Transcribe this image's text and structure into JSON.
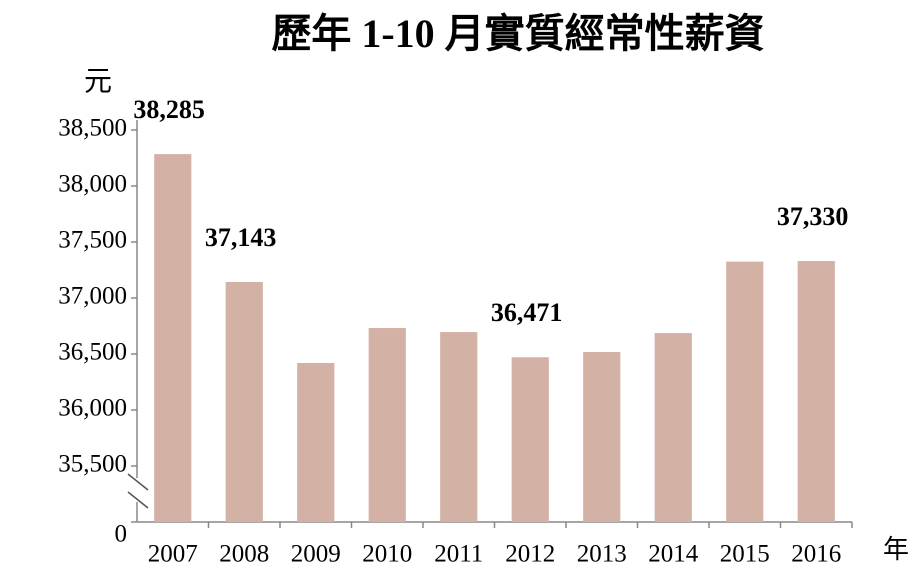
{
  "chart_data": {
    "type": "bar",
    "title": "歷年 1-10 月實質經常性薪資",
    "y_label": "元",
    "x_label": "年",
    "categories": [
      "2007",
      "2008",
      "2009",
      "2010",
      "2011",
      "2012",
      "2013",
      "2014",
      "2015",
      "2016"
    ],
    "values": [
      38285,
      37143,
      36420,
      36732,
      36696,
      36471,
      36518,
      36687,
      37325,
      37330
    ],
    "value_labels": [
      "38,285",
      "37,143",
      null,
      null,
      null,
      "36,471",
      null,
      null,
      null,
      "37,330"
    ],
    "color": "#d3b2a5",
    "ylim": [
      0,
      38500
    ],
    "axis_break": [
      0,
      35000
    ],
    "yticks": [
      0,
      {
        "value": 35500,
        "label": "35,500"
      },
      {
        "value": 36000,
        "label": "36,000"
      },
      {
        "value": 36500,
        "label": "36,500"
      },
      {
        "value": 37000,
        "label": "37,000"
      },
      {
        "value": 37500,
        "label": "37,500"
      },
      {
        "value": 38000,
        "label": "38,000"
      },
      {
        "value": 38500,
        "label": "38,500"
      }
    ],
    "grid": false
  }
}
